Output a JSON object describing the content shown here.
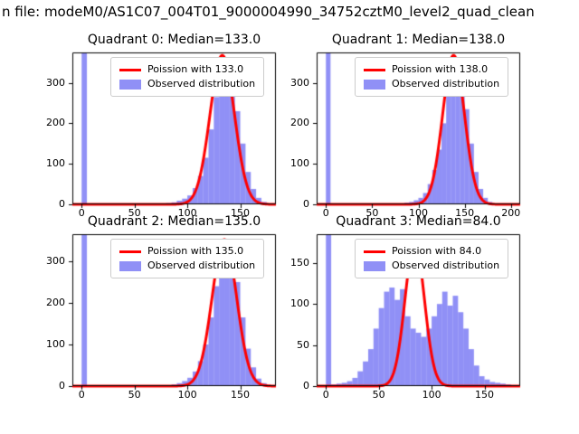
{
  "figure": {
    "suptitle": "n file: modeM0/AS1C07_004T01_9000004990_34752cztM0_level2_quad_clean",
    "background": "#ffffff",
    "bar_color": "rgba(70,70,240,0.6)",
    "line_color": "#ff0000",
    "frame_color": "#000000"
  },
  "chart_data": [
    {
      "type": "histogram+curve",
      "title": "Quadrant 0: Median=133.0",
      "xlim": [
        -8.75,
        183.75
      ],
      "ylim": [
        0,
        375
      ],
      "xticks": [
        0,
        50,
        100,
        150
      ],
      "yticks": [
        0,
        100,
        200,
        300
      ],
      "legend_position": "upper right",
      "hist": {
        "label": "Observed distribution",
        "bin_start": 0,
        "bin_width": 5,
        "counts": [
          375,
          0,
          0,
          0,
          0,
          0,
          0,
          0,
          0,
          0,
          0,
          0,
          0,
          0,
          1,
          2,
          3,
          5,
          9,
          14,
          22,
          40,
          70,
          115,
          185,
          265,
          330,
          355,
          310,
          230,
          150,
          80,
          38,
          16,
          6
        ]
      },
      "curve": {
        "label": "Poission with 133.0",
        "lambda": 133.0,
        "peak": 368
      }
    },
    {
      "type": "histogram+curve",
      "title": "Quadrant 1: Median=138.0",
      "xlim": [
        -10,
        210
      ],
      "ylim": [
        0,
        375
      ],
      "xticks": [
        0,
        50,
        100,
        150,
        200
      ],
      "yticks": [
        0,
        100,
        200,
        300
      ],
      "legend_position": "upper right",
      "hist": {
        "label": "Observed distribution",
        "bin_start": 0,
        "bin_width": 5,
        "counts": [
          375,
          0,
          0,
          0,
          0,
          0,
          0,
          0,
          0,
          0,
          0,
          0,
          0,
          0,
          0,
          0,
          2,
          4,
          6,
          10,
          16,
          28,
          50,
          85,
          135,
          200,
          280,
          340,
          355,
          315,
          235,
          150,
          80,
          38,
          16,
          6,
          2,
          0,
          0,
          0,
          0
        ]
      },
      "curve": {
        "label": "Poission with 138.0",
        "lambda": 138.0,
        "peak": 368
      }
    },
    {
      "type": "histogram+curve",
      "title": "Quadrant 2: Median=135.0",
      "xlim": [
        -8.75,
        183.75
      ],
      "ylim": [
        0,
        365
      ],
      "xticks": [
        0,
        50,
        100,
        150
      ],
      "yticks": [
        0,
        100,
        200,
        300
      ],
      "legend_position": "upper right",
      "hist": {
        "label": "Observed distribution",
        "bin_start": 0,
        "bin_width": 5,
        "counts": [
          365,
          0,
          0,
          0,
          0,
          0,
          0,
          0,
          0,
          0,
          0,
          0,
          0,
          0,
          0,
          1,
          2,
          4,
          7,
          12,
          20,
          35,
          60,
          100,
          165,
          240,
          310,
          345,
          320,
          250,
          165,
          90,
          45,
          18,
          7
        ]
      },
      "curve": {
        "label": "Poission with 135.0",
        "lambda": 135.0,
        "peak": 352
      }
    },
    {
      "type": "histogram+curve",
      "title": "Quadrant 3: Median=84.0",
      "xlim": [
        -8.75,
        183.75
      ],
      "ylim": [
        0,
        185
      ],
      "xticks": [
        0,
        50,
        100,
        150
      ],
      "yticks": [
        0,
        50,
        100,
        150
      ],
      "legend_position": "upper right",
      "hist": {
        "label": "Observed distribution",
        "bin_start": 0,
        "bin_width": 5,
        "counts": [
          185,
          2,
          3,
          4,
          6,
          10,
          18,
          30,
          45,
          70,
          95,
          115,
          120,
          105,
          118,
          85,
          70,
          65,
          60,
          70,
          85,
          100,
          115,
          98,
          110,
          90,
          70,
          45,
          25,
          12,
          8,
          5,
          4,
          3,
          2
        ]
      },
      "curve": {
        "label": "Poission with 84.0",
        "lambda": 84.0,
        "peak": 175
      }
    }
  ]
}
